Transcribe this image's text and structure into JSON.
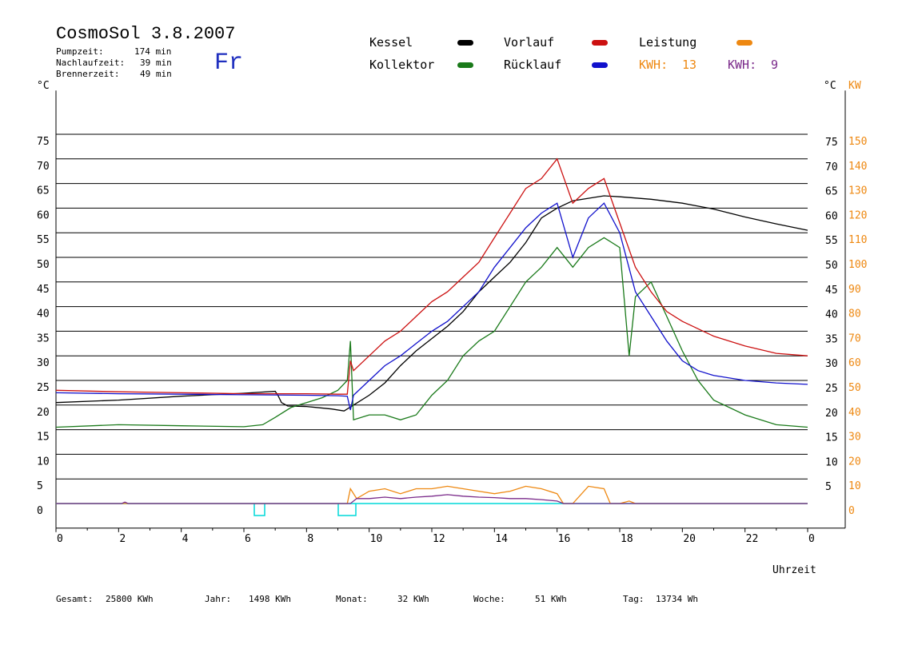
{
  "header": {
    "title": "CosmoSol 3.8.2007",
    "pump_label": "Pumpzeit:",
    "pump_value": "174 min",
    "nach_label": "Nachlaufzeit:",
    "nach_value": "39 min",
    "brenner_label": "Brennerzeit:",
    "brenner_value": "49 min",
    "weekday": "Fr"
  },
  "legend": {
    "kessel": "Kessel",
    "kollektor": "Kollektor",
    "vorlauf": "Vorlauf",
    "ruecklauf": "Rücklauf",
    "leistung": "Leistung",
    "kwh1_label": "KWH:",
    "kwh1_value": "13",
    "kwh2_label": "KWH:",
    "kwh2_value": "9"
  },
  "colors": {
    "kessel": "#000000",
    "kollektor": "#1a7a1a",
    "vorlauf": "#cc1111",
    "ruecklauf": "#1111cc",
    "leistung": "#ee8811",
    "kwh2": "#7a2a8a",
    "base": "#00d8d8"
  },
  "footer": {
    "gesamt_label": "Gesamt:",
    "gesamt_value": "25800 KWh",
    "jahr_label": "Jahr:",
    "jahr_value": "1498 KWh",
    "monat_label": "Monat:",
    "monat_value": "32 KWh",
    "woche_label": "Woche:",
    "woche_value": "51 KWh",
    "tag_label": "Tag:",
    "tag_value": "13734 Wh"
  },
  "chart_data": {
    "type": "line",
    "xlabel": "Uhrzeit",
    "ylabel_left": "°C",
    "ylabel_right_c": "°C",
    "ylabel_right_kw": "KW",
    "xlim": [
      0,
      24
    ],
    "ylim": [
      -5,
      80
    ],
    "x_ticks": [
      "0",
      "2",
      "4",
      "6",
      "8",
      "10",
      "12",
      "14",
      "16",
      "18",
      "20",
      "22",
      "0"
    ],
    "y_ticks_left": [
      "0",
      "5",
      "10",
      "15",
      "20",
      "25",
      "30",
      "35",
      "40",
      "45",
      "50",
      "55",
      "60",
      "65",
      "70",
      "75"
    ],
    "y_ticks_right_c": [
      "5",
      "10",
      "15",
      "20",
      "25",
      "30",
      "35",
      "40",
      "45",
      "50",
      "55",
      "60",
      "65",
      "70",
      "75"
    ],
    "y_ticks_right_kw": [
      "0",
      "10",
      "20",
      "30",
      "40",
      "50",
      "60",
      "70",
      "80",
      "90",
      "100",
      "110",
      "120",
      "130",
      "140",
      "150"
    ],
    "series": [
      {
        "name": "Kessel",
        "x": [
          0,
          2,
          4,
          6,
          7,
          7.1,
          7.2,
          7.4,
          8,
          8.8,
          9.2,
          9.5,
          10,
          10.5,
          11,
          11.5,
          12,
          12.5,
          13,
          13.5,
          14,
          14.5,
          15,
          15.5,
          16,
          16.5,
          17,
          17.5,
          18,
          19,
          20,
          21,
          22,
          23,
          24
        ],
        "y": [
          20.5,
          21,
          21.8,
          22.4,
          22.8,
          21.8,
          20.5,
          19.8,
          19.7,
          19.2,
          18.8,
          20,
          22,
          24.5,
          28,
          31,
          33.5,
          36,
          39,
          43,
          46,
          49,
          53,
          58,
          60,
          61.5,
          62,
          62.5,
          62.3,
          61.8,
          61,
          59.8,
          58.2,
          56.8,
          55.5
        ]
      },
      {
        "name": "Kollektor",
        "x": [
          0,
          2,
          4,
          6,
          6.6,
          7,
          7.5,
          8,
          8.5,
          9,
          9.3,
          9.4,
          9.5,
          10,
          10.5,
          11,
          11.5,
          12,
          12.5,
          13,
          13.5,
          14,
          14.5,
          15,
          15.5,
          16,
          16.5,
          17,
          17.5,
          18,
          18.3,
          18.5,
          19,
          19.5,
          20,
          20.5,
          21,
          22,
          23,
          24
        ],
        "y": [
          15.5,
          16,
          15.8,
          15.6,
          16,
          17.5,
          19.5,
          20.5,
          21.5,
          23,
          25,
          33,
          17,
          18,
          18,
          17,
          18,
          22,
          25,
          30,
          33,
          35,
          40,
          45,
          48,
          52,
          48,
          52,
          54,
          52,
          30,
          42,
          45,
          38,
          31,
          25,
          21,
          18,
          16,
          15.5
        ]
      },
      {
        "name": "Vorlauf",
        "x": [
          0,
          2,
          4,
          6,
          8,
          9,
          9.3,
          9.4,
          9.5,
          10,
          10.5,
          11,
          11.5,
          12,
          12.5,
          13,
          13.5,
          14,
          14.5,
          15,
          15.5,
          16,
          16.5,
          17,
          17.5,
          18,
          18.5,
          19,
          19.5,
          20,
          21,
          22,
          23,
          24
        ],
        "y": [
          23,
          22.7,
          22.5,
          22.3,
          22.3,
          22.2,
          22.2,
          29,
          27,
          30,
          33,
          35,
          38,
          41,
          43,
          46,
          49,
          54,
          59,
          64,
          66,
          70,
          61,
          64,
          66,
          57,
          48,
          43,
          39,
          37,
          34,
          32,
          30.5,
          30
        ]
      },
      {
        "name": "Rücklauf",
        "x": [
          0,
          2,
          4,
          6,
          8,
          9,
          9.3,
          9.4,
          9.5,
          10,
          10.5,
          11,
          11.5,
          12,
          12.5,
          13,
          13.5,
          14,
          14.5,
          15,
          15.5,
          16,
          16.5,
          17,
          17.5,
          18,
          18.5,
          19,
          19.5,
          20,
          20.5,
          21,
          22,
          23,
          24
        ],
        "y": [
          22.5,
          22.3,
          22.2,
          22.1,
          22,
          21.9,
          21.8,
          19,
          22,
          25,
          28,
          30,
          32.5,
          35,
          37,
          40,
          43,
          48,
          52,
          56,
          59,
          61,
          50,
          58,
          61,
          55,
          43,
          38,
          33,
          29,
          27,
          26,
          25,
          24.5,
          24.2
        ]
      }
    ],
    "power_series": [
      {
        "name": "Leistung",
        "x": [
          0,
          9.3,
          9.4,
          9.6,
          10,
          10.5,
          11,
          11.5,
          12,
          12.5,
          13,
          13.5,
          14,
          14.5,
          15,
          15.5,
          16,
          16.2,
          16.5,
          17,
          17.5,
          17.7,
          18,
          18.3,
          18.5,
          24
        ],
        "y": [
          0,
          0,
          3,
          1,
          2.5,
          3,
          2,
          3,
          3,
          3.5,
          3,
          2.5,
          2,
          2.5,
          3.5,
          3,
          2,
          0,
          0,
          3.5,
          3,
          0,
          0,
          0.5,
          0,
          0
        ]
      },
      {
        "name": "KWH",
        "x": [
          0,
          2.1,
          2.2,
          2.3,
          9.4,
          9.6,
          10,
          10.5,
          11,
          11.5,
          12,
          12.5,
          13,
          13.5,
          14,
          14.5,
          15,
          15.5,
          16,
          16.2,
          24
        ],
        "y": [
          0,
          0,
          0.3,
          0,
          0,
          1,
          1,
          1.3,
          1,
          1.3,
          1.5,
          1.8,
          1.5,
          1.3,
          1.2,
          1,
          1,
          0.8,
          0.5,
          0,
          0
        ]
      }
    ]
  }
}
